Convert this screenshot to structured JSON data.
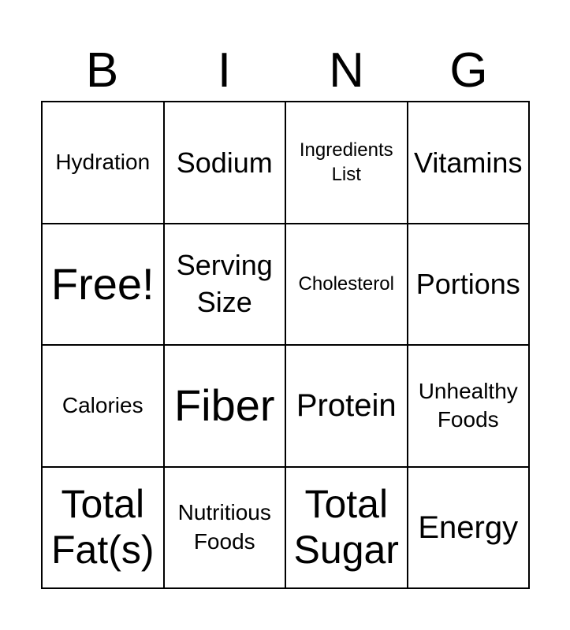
{
  "header": {
    "letters": [
      "B",
      "I",
      "N",
      "G"
    ]
  },
  "cells": [
    [
      "Hydration",
      "Sodium",
      "Ingredients List",
      "Vitamins"
    ],
    [
      "Free!",
      "Serving Size",
      "Cholesterol",
      "Portions"
    ],
    [
      "Calories",
      "Fiber",
      "Protein",
      "Unhealthy Foods"
    ],
    [
      "Total Fat(s)",
      "Nutritious Foods",
      "Total Sugar",
      "Energy"
    ]
  ]
}
